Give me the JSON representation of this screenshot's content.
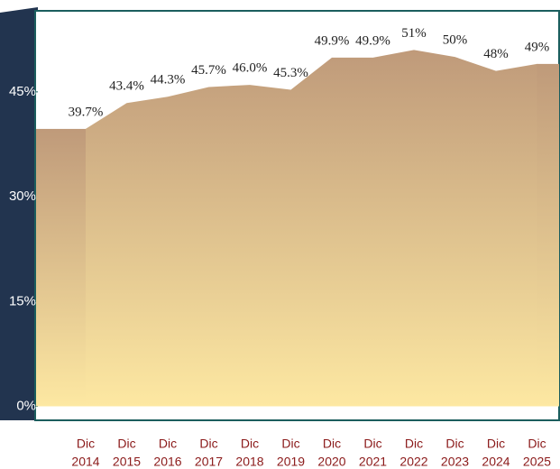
{
  "chart_data": {
    "type": "area",
    "categories": [
      [
        "Dic",
        "2014"
      ],
      [
        "Dic",
        "2015"
      ],
      [
        "Dic",
        "2016"
      ],
      [
        "Dic",
        "2017"
      ],
      [
        "Dic",
        "2018"
      ],
      [
        "Dic",
        "2019"
      ],
      [
        "Dic",
        "2020"
      ],
      [
        "Dic",
        "2021"
      ],
      [
        "Dic",
        "2022"
      ],
      [
        "Dic",
        "2023"
      ],
      [
        "Dic",
        "2024"
      ],
      [
        "Dic",
        "2025"
      ]
    ],
    "values": [
      39.7,
      43.4,
      44.3,
      45.7,
      46.0,
      45.3,
      49.9,
      49.9,
      51,
      50,
      48,
      49
    ],
    "value_labels": [
      "39.7%",
      "43.4%",
      "44.3%",
      "45.7%",
      "46.0%",
      "45.3%",
      "49.9%",
      "49.9%",
      "51%",
      "50%",
      "48%",
      "49%"
    ],
    "color_top": "#bf9a7a",
    "color_bottom": "#fde8a2",
    "ylim": [
      -2,
      56.6
    ],
    "yticks": [
      {
        "value": 0,
        "label": "0%"
      },
      {
        "value": 15,
        "label": "15%"
      },
      {
        "value": 30,
        "label": "30%"
      },
      {
        "value": 45,
        "label": "45%"
      }
    ]
  }
}
